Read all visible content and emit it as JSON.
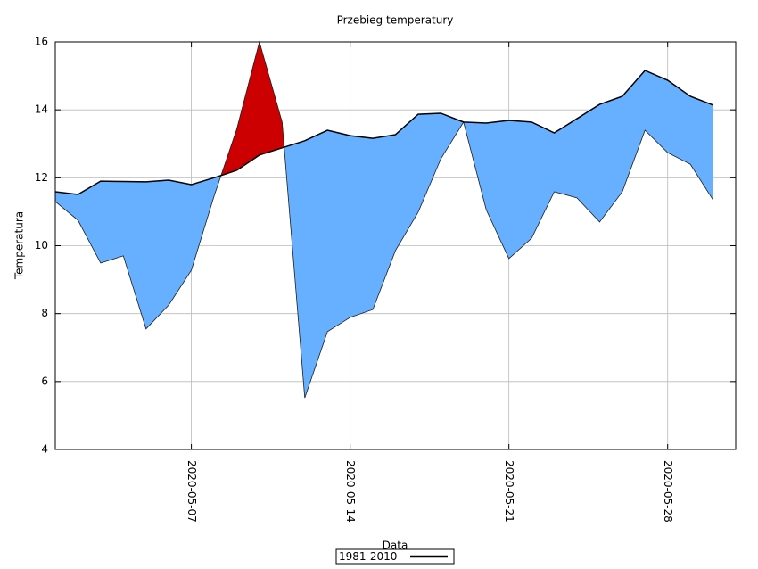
{
  "chart_data": {
    "type": "filled-difference",
    "title": "Przebieg temperatury",
    "x_label": "Data",
    "y_label": "Temperatura",
    "x": [
      "2020-05-01",
      "2020-05-02",
      "2020-05-03",
      "2020-05-04",
      "2020-05-05",
      "2020-05-06",
      "2020-05-07",
      "2020-05-08",
      "2020-05-09",
      "2020-05-10",
      "2020-05-11",
      "2020-05-12",
      "2020-05-13",
      "2020-05-14",
      "2020-05-15",
      "2020-05-16",
      "2020-05-17",
      "2020-05-18",
      "2020-05-19",
      "2020-05-20",
      "2020-05-21",
      "2020-05-22",
      "2020-05-23",
      "2020-05-24",
      "2020-05-25",
      "2020-05-26",
      "2020-05-27",
      "2020-05-28",
      "2020-05-29",
      "2020-05-30"
    ],
    "series": [
      {
        "name": "1981-2010",
        "color": "#000000",
        "values": [
          11.59,
          11.51,
          11.9,
          11.89,
          11.88,
          11.93,
          11.8,
          12.0,
          12.22,
          12.67,
          12.88,
          13.09,
          13.4,
          13.24,
          13.16,
          13.27,
          13.87,
          13.9,
          13.64,
          13.61,
          13.69,
          13.64,
          13.32,
          13.74,
          14.16,
          14.4,
          15.16,
          14.87,
          14.4,
          14.14
        ]
      },
      {
        "color": "#222222",
        "values": [
          11.3,
          10.75,
          9.49,
          9.7,
          7.55,
          8.25,
          9.28,
          11.46,
          13.43,
          16.0,
          13.64,
          5.52,
          7.47,
          7.89,
          8.12,
          9.86,
          10.99,
          12.56,
          13.64,
          11.06,
          9.62,
          10.22,
          11.59,
          11.41,
          10.7,
          11.59,
          13.4,
          12.74,
          12.4,
          11.35
        ]
      }
    ],
    "fill_below_color": "#66b0ff",
    "fill_above_color": "#cc0000",
    "xlim": [
      "2020-05-01",
      "2020-05-31"
    ],
    "xticks": [
      "2020-05-07",
      "2020-05-14",
      "2020-05-21",
      "2020-05-28"
    ],
    "ylim": [
      4,
      16
    ],
    "yticks": [
      4,
      6,
      8,
      10,
      12,
      14,
      16
    ],
    "grid": true
  }
}
